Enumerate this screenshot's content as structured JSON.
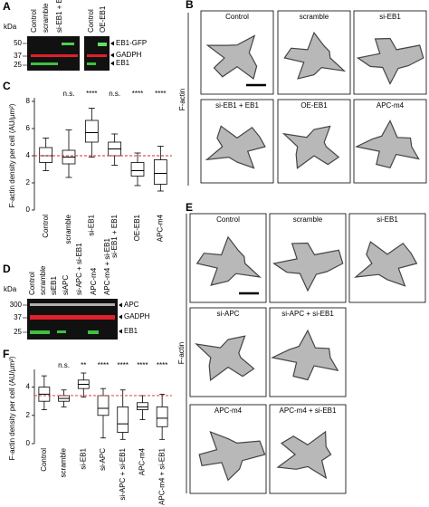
{
  "blot_a": {
    "letter": "A",
    "unit": "kDa",
    "lanes": [
      "Control",
      "scramble",
      "si-EB1 + EB1",
      "Control",
      "OE-EB1"
    ],
    "markers": [
      50,
      37,
      25
    ],
    "bands": [
      "EB1-GFP",
      "GADPH",
      "EB1"
    ]
  },
  "images_b": {
    "letter": "B",
    "stain": "F-actin",
    "labels": [
      "Control",
      "scramble",
      "si-EB1",
      "si-EB1 + EB1",
      "OE-EB1",
      "APC-m4"
    ]
  },
  "blot_d": {
    "letter": "D",
    "unit": "kDa",
    "lanes": [
      "Control",
      "scramble",
      "siEB1",
      "siAPC",
      "si-APC + si-EB1",
      "APC-m4",
      "APC-m4 + si-EB1"
    ],
    "markers": [
      300,
      37,
      25
    ],
    "bands": [
      "APC",
      "GADPH",
      "EB1"
    ]
  },
  "images_e": {
    "letter": "E",
    "stain": "F-actin",
    "labels": [
      "Control",
      "scramble",
      "si-EB1",
      "si-APC",
      "si-APC + si-EB1",
      "APC-m4",
      "APC-m4 + si-EB1"
    ]
  },
  "chart_data": [
    {
      "type": "box",
      "panel": "C",
      "y_label": "F-actin density per cell (AU/µm²)",
      "categories": [
        "Control",
        "scramble",
        "si-EB1",
        "si-EB1 + EB1",
        "OE-EB1",
        "APC-m4"
      ],
      "low": [
        2.9,
        2.4,
        3.9,
        3.3,
        1.8,
        1.4
      ],
      "q1": [
        3.5,
        3.4,
        5.0,
        4.0,
        2.5,
        1.9
      ],
      "median": [
        4.0,
        3.9,
        5.7,
        4.5,
        2.9,
        2.7
      ],
      "q3": [
        4.6,
        4.4,
        6.6,
        5.0,
        3.5,
        3.7
      ],
      "high": [
        5.3,
        5.9,
        7.5,
        5.6,
        4.2,
        4.7
      ],
      "significance": [
        null,
        "n.s.",
        "****",
        "n.s.",
        "****",
        "****"
      ],
      "reference_line": 4.0,
      "reference_color": "#d62728",
      "ylim": [
        0,
        8
      ],
      "yticks": [
        0,
        2,
        4,
        6,
        8
      ]
    },
    {
      "type": "box",
      "panel": "F",
      "y_label": "F-actin density per cell (AU/µm²)",
      "categories": [
        "Control",
        "scramble",
        "si-EB1",
        "si-APC",
        "si-APC + si-EB1",
        "APC-m4",
        "APC-m4 + si-EB1"
      ],
      "low": [
        2.4,
        2.6,
        3.3,
        0.4,
        0.3,
        1.7,
        0.3
      ],
      "q1": [
        3.0,
        3.0,
        3.9,
        2.0,
        0.8,
        2.4,
        1.2
      ],
      "median": [
        3.5,
        3.2,
        4.2,
        2.5,
        1.4,
        2.6,
        1.8
      ],
      "q3": [
        4.0,
        3.4,
        4.5,
        3.4,
        2.6,
        2.9,
        2.6
      ],
      "high": [
        4.8,
        3.8,
        5.0,
        3.9,
        3.8,
        3.4,
        3.5
      ],
      "significance": [
        null,
        "n.s.",
        "**",
        "****",
        "****",
        "****",
        "****"
      ],
      "reference_line": 3.4,
      "reference_color": "#d62728",
      "ylim": [
        0,
        5
      ],
      "yticks": [
        0,
        2,
        4
      ]
    }
  ]
}
